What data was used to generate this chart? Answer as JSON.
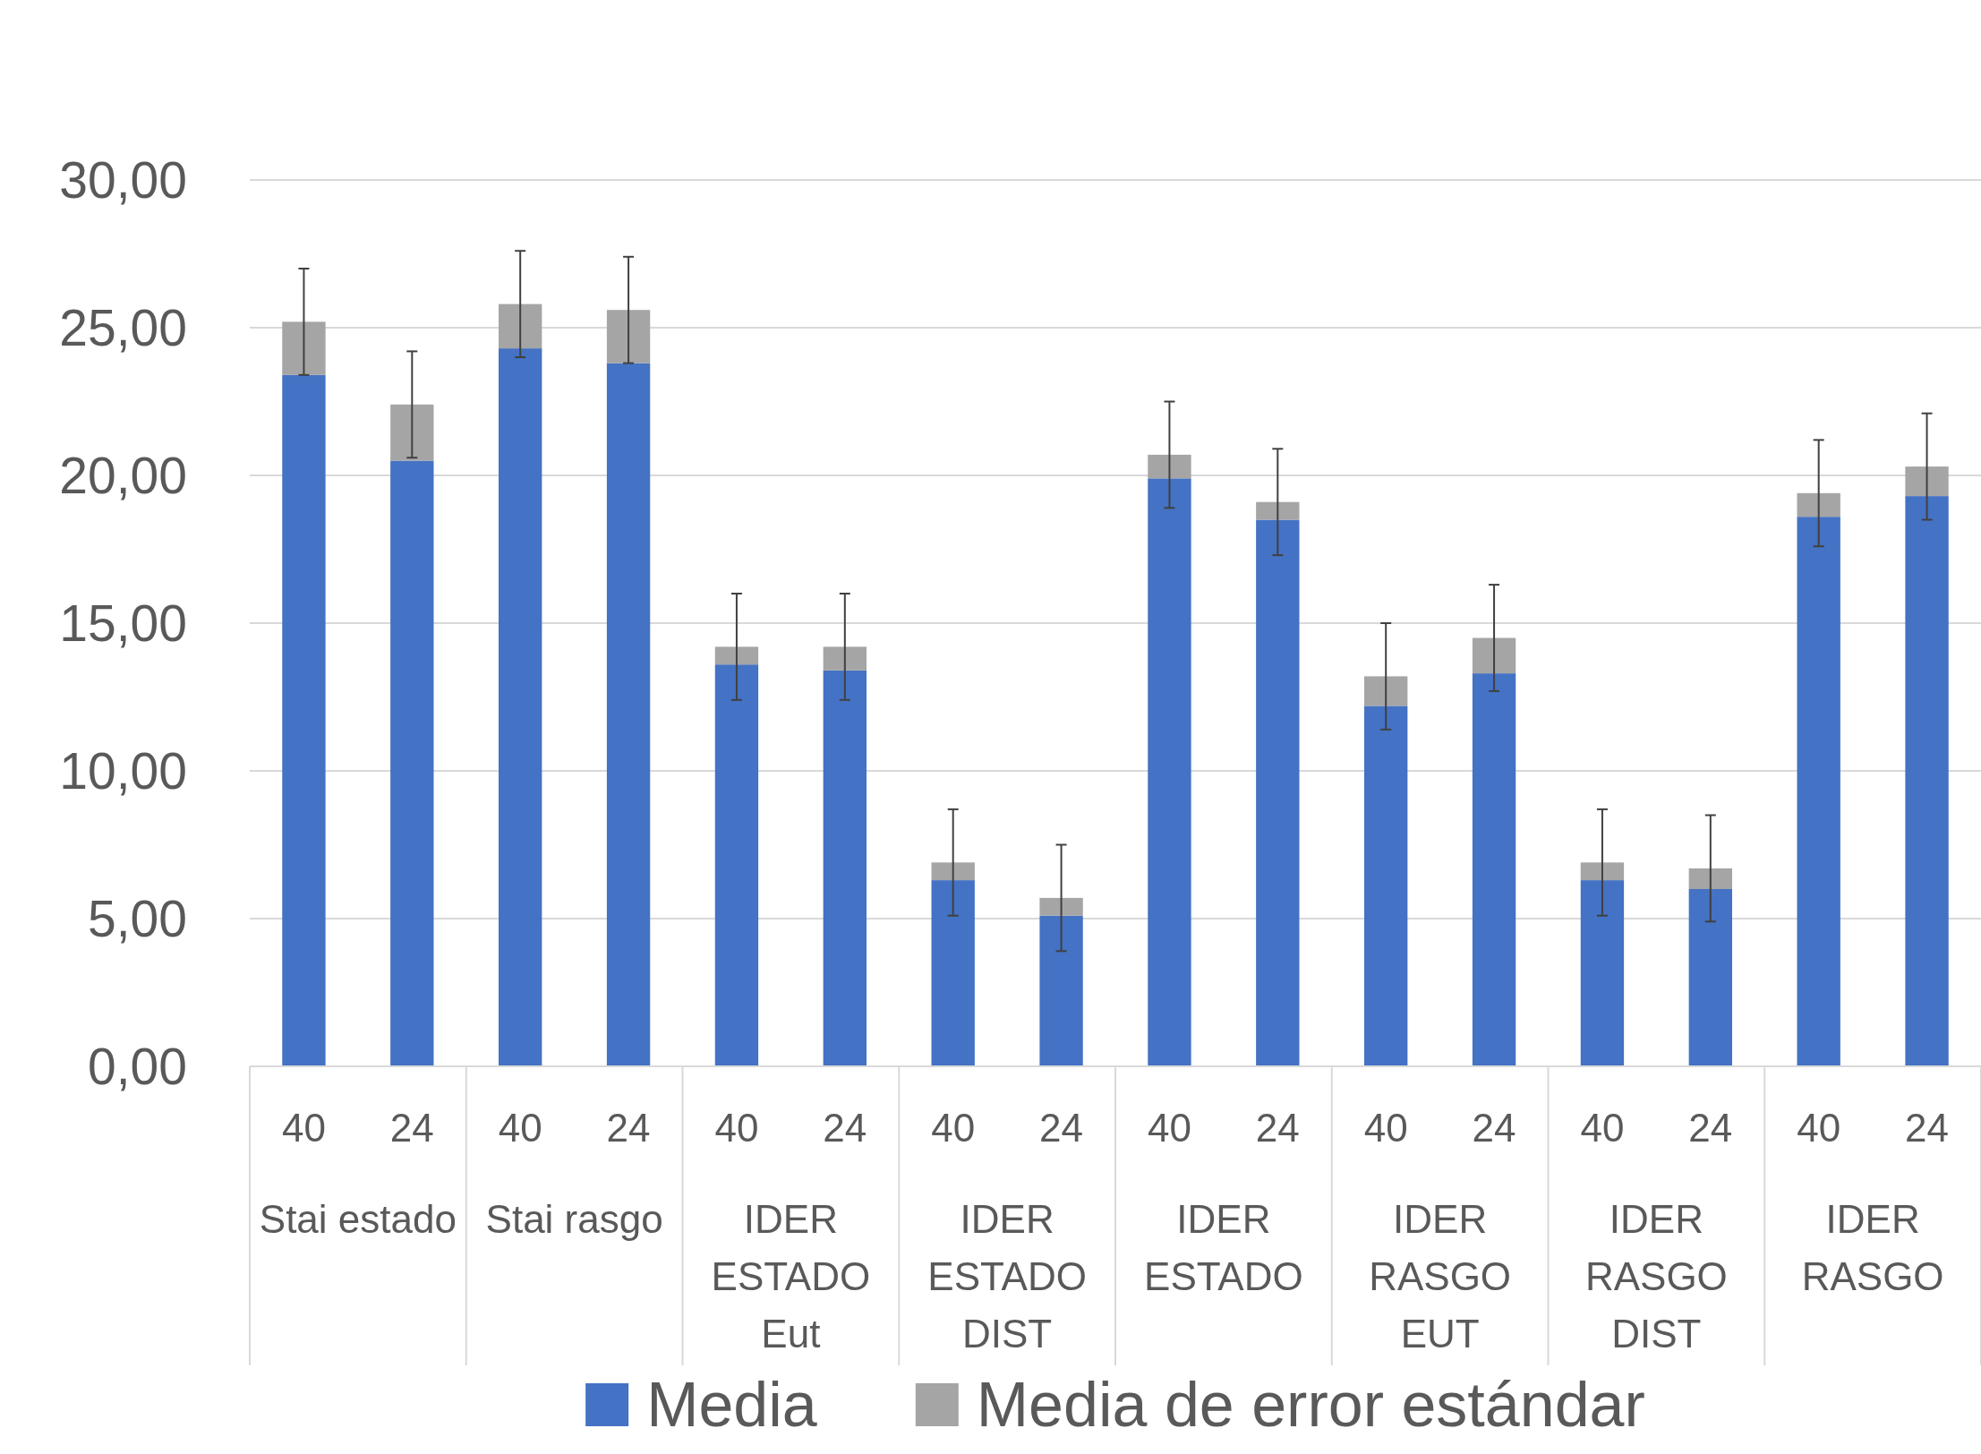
{
  "chart_data": {
    "type": "bar",
    "stacked": true,
    "categories": [
      "40",
      "24",
      "40",
      "24",
      "40",
      "24",
      "40",
      "24",
      "40",
      "24",
      "40",
      "24",
      "40",
      "24",
      "40",
      "24"
    ],
    "series": [
      {
        "name": "Media",
        "color": "#4472c4",
        "values": [
          23.4,
          20.5,
          24.3,
          23.8,
          13.6,
          13.4,
          6.3,
          5.1,
          19.9,
          18.5,
          12.2,
          13.3,
          6.3,
          6.0,
          18.6,
          19.3
        ]
      },
      {
        "name": "Media de error estándar",
        "color": "#a5a5a5",
        "values": [
          1.8,
          1.9,
          1.5,
          1.8,
          0.6,
          0.8,
          0.6,
          0.6,
          0.8,
          0.6,
          1.0,
          1.2,
          0.6,
          0.7,
          0.8,
          1.0
        ],
        "errors": [
          1.8,
          1.8,
          1.8,
          1.8,
          1.8,
          1.8,
          1.8,
          1.8,
          1.8,
          1.8,
          1.8,
          1.8,
          1.8,
          1.8,
          1.8,
          1.8
        ]
      }
    ],
    "ylim": [
      0,
      30
    ],
    "yticks": [
      {
        "value": 0,
        "label": "0,00"
      },
      {
        "value": 5,
        "label": "5,00"
      },
      {
        "value": 10,
        "label": "10,00"
      },
      {
        "value": 15,
        "label": "15,00"
      },
      {
        "value": 20,
        "label": "20,00"
      },
      {
        "value": 25,
        "label": "25,00"
      },
      {
        "value": 30,
        "label": "30,00"
      }
    ],
    "grid": "y",
    "legend": "bottom",
    "annotations": [
      "Stai estado",
      "Stai rasgo",
      "IDER ESTADO Eut",
      "IDER ESTADO DIST",
      "IDER ESTADO",
      "IDER RASGO EUT",
      "IDER RASGO DIST",
      "IDER RASGO"
    ]
  }
}
